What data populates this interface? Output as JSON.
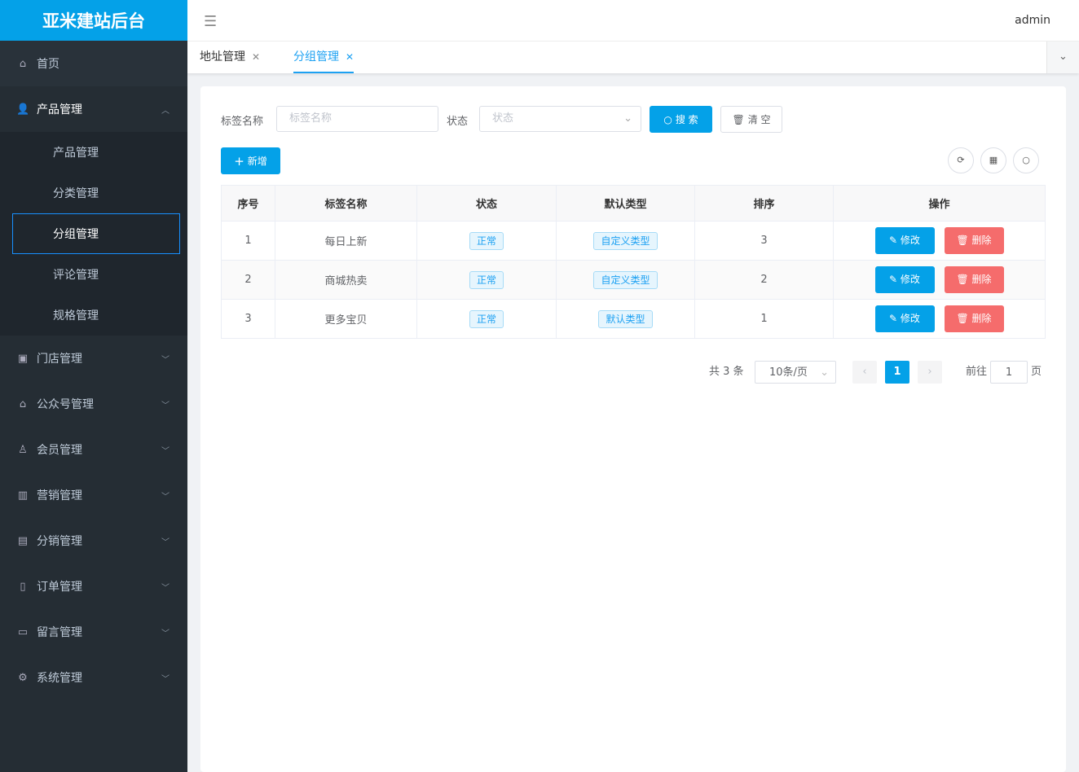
{
  "app": {
    "title": "亚米建站后台",
    "user": "admin"
  },
  "sidebar": {
    "items": [
      {
        "label": "首页",
        "icon": "home-icon"
      },
      {
        "label": "产品管理",
        "icon": "user-icon",
        "expanded": true,
        "children": [
          "产品管理",
          "分类管理",
          "分组管理",
          "评论管理",
          "规格管理"
        ],
        "active_child": "分组管理"
      },
      {
        "label": "门店管理",
        "icon": "store-icon"
      },
      {
        "label": "公众号管理",
        "icon": "home-icon"
      },
      {
        "label": "会员管理",
        "icon": "member-icon"
      },
      {
        "label": "营销管理",
        "icon": "bar-chart-icon"
      },
      {
        "label": "分销管理",
        "icon": "distribution-icon"
      },
      {
        "label": "订单管理",
        "icon": "order-icon"
      },
      {
        "label": "留言管理",
        "icon": "message-icon"
      },
      {
        "label": "系统管理",
        "icon": "gear-icon"
      }
    ]
  },
  "tabs": [
    {
      "label": "地址管理",
      "active": false
    },
    {
      "label": "分组管理",
      "active": true
    }
  ],
  "filters": {
    "name_label": "标签名称",
    "name_placeholder": "标签名称",
    "status_label": "状态",
    "status_placeholder": "状态",
    "search": "搜 索",
    "clear": "清 空"
  },
  "toolbar": {
    "add": "新增"
  },
  "table": {
    "columns": [
      "序号",
      "标签名称",
      "状态",
      "默认类型",
      "排序",
      "操作"
    ],
    "rows": [
      {
        "index": "1",
        "name": "每日上新",
        "status": "正常",
        "type": "自定义类型",
        "sort": "3"
      },
      {
        "index": "2",
        "name": "商城热卖",
        "status": "正常",
        "type": "自定义类型",
        "sort": "2"
      },
      {
        "index": "3",
        "name": "更多宝贝",
        "status": "正常",
        "type": "默认类型",
        "sort": "1"
      }
    ],
    "edit": "修改",
    "delete": "删除"
  },
  "pagination": {
    "total": "共 3 条",
    "page_size": "10条/页",
    "current": "1",
    "goto_label": "前往",
    "goto_value": "1",
    "page_suffix": "页"
  },
  "colors": {
    "primary": "#04a1e8",
    "danger": "#f56c6c",
    "sidebar": "#252d34"
  }
}
